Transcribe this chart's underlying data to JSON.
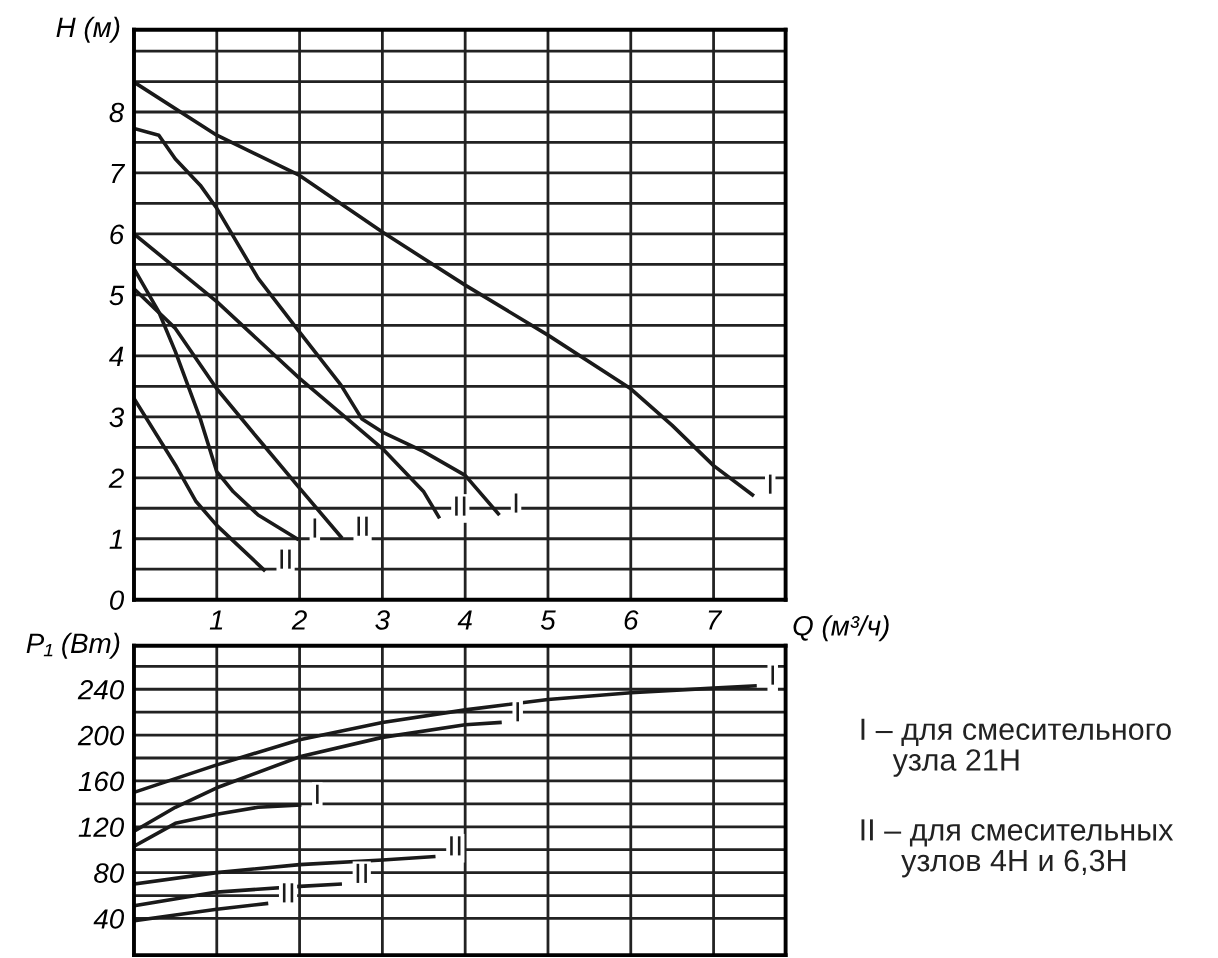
{
  "chart_data": [
    {
      "type": "line",
      "ylabel": "H (м)",
      "xlabel": "Q (м³/ч)",
      "xlim": [
        0,
        7.87
      ],
      "ylim": [
        0,
        9.35
      ],
      "xticks": [
        {
          "value": 0,
          "label": null
        },
        1,
        2,
        3,
        4,
        5,
        6,
        7
      ],
      "yticks": [
        0,
        {
          "value": 0.5,
          "label": null
        },
        1,
        {
          "value": 1.5,
          "label": null
        },
        2,
        {
          "value": 2.5,
          "label": null
        },
        3,
        {
          "value": 3.5,
          "label": null
        },
        4,
        {
          "value": 4.5,
          "label": null
        },
        5,
        {
          "value": 5.5,
          "label": null
        },
        6,
        {
          "value": 6.5,
          "label": null
        },
        7,
        {
          "value": 7.5,
          "label": null
        },
        8,
        {
          "value": 8.5,
          "label": null
        },
        {
          "value": 9,
          "label": null
        }
      ],
      "grid": true,
      "marker": "none",
      "line_style": "solid",
      "series": [
        {
          "name": "I",
          "color": "#1a1a1a",
          "x": [
            0,
            1,
            2,
            3,
            4,
            5,
            6,
            6.5,
            7,
            7.47
          ],
          "values": [
            8.49,
            7.62,
            6.96,
            6.03,
            5.16,
            4.34,
            3.46,
            2.86,
            2.2,
            1.72
          ]
        },
        {
          "name": "I",
          "color": "#1a1a1a",
          "x": [
            0,
            0.3,
            0.5,
            0.8,
            1,
            1.5,
            2,
            2.5,
            2.75,
            3,
            3.5,
            4,
            4.4
          ],
          "values": [
            7.73,
            7.62,
            7.23,
            6.8,
            6.42,
            5.27,
            4.39,
            3.52,
            2.97,
            2.75,
            2.43,
            2.04,
            1.41
          ]
        },
        {
          "name": "II",
          "color": "#1a1a1a",
          "x": [
            0,
            1,
            2,
            3,
            3.5,
            3.68
          ],
          "values": [
            6.0,
            4.89,
            3.63,
            2.48,
            1.77,
            1.36
          ]
        },
        {
          "name": "II",
          "color": "#1a1a1a",
          "x": [
            0,
            0.5,
            1,
            1.5,
            2,
            2.5
          ],
          "values": [
            5.1,
            4.45,
            3.46,
            2.64,
            1.83,
            1.03
          ]
        },
        {
          "name": "I",
          "color": "#1a1a1a",
          "x": [
            0,
            0.3,
            0.5,
            0.8,
            1,
            1.2,
            1.5,
            1.97
          ],
          "values": [
            5.43,
            4.72,
            4.07,
            2.97,
            2.1,
            1.77,
            1.39,
            1.0
          ]
        },
        {
          "name": "II",
          "color": "#1a1a1a",
          "x": [
            0,
            0.5,
            0.75,
            1,
            1.25,
            1.57
          ],
          "values": [
            3.3,
            2.21,
            1.61,
            1.22,
            0.9,
            0.49
          ]
        }
      ]
    },
    {
      "type": "line",
      "ylabel": "P₁ (Вт)",
      "xlim": [
        0,
        7.87
      ],
      "ylim": [
        8,
        278
      ],
      "tick_labels": "y",
      "xticks": [
        {
          "value": 1,
          "label": null
        },
        {
          "value": 2,
          "label": null
        },
        {
          "value": 3,
          "label": null
        },
        {
          "value": 4,
          "label": null
        },
        {
          "value": 5,
          "label": null
        },
        {
          "value": 6,
          "label": null
        },
        {
          "value": 7,
          "label": null
        }
      ],
      "yticks": [
        40,
        {
          "value": 60,
          "label": null
        },
        80,
        {
          "value": 100,
          "label": null
        },
        120,
        {
          "value": 140,
          "label": null
        },
        160,
        {
          "value": 180,
          "label": null
        },
        200,
        {
          "value": 220,
          "label": null
        },
        240,
        {
          "value": 260,
          "label": null
        }
      ],
      "grid": true,
      "marker": "none",
      "line_style": "solid",
      "annotations": [
        "I – для смесительного\n    узла 21H",
        "II – для смесительных\n     узлов 4H и 6,3H"
      ],
      "series": [
        {
          "name": "I",
          "color": "#1a1a1a",
          "x": [
            0,
            1,
            2,
            3,
            4,
            5,
            6,
            7,
            7.5
          ],
          "values": [
            150,
            174,
            196,
            211,
            222,
            231,
            237,
            241,
            243
          ]
        },
        {
          "name": "I",
          "color": "#1a1a1a",
          "x": [
            0,
            0.5,
            1,
            2,
            3,
            4,
            4.42
          ],
          "values": [
            116,
            137,
            154,
            181,
            198,
            209,
            211
          ]
        },
        {
          "name": "I",
          "color": "#1a1a1a",
          "x": [
            0,
            0.5,
            1,
            1.5,
            2.0
          ],
          "values": [
            103,
            123,
            131,
            137,
            139
          ]
        },
        {
          "name": "II",
          "color": "#1a1a1a",
          "x": [
            0,
            1,
            2,
            3,
            3.62
          ],
          "values": [
            70,
            80,
            87,
            91,
            94
          ]
        },
        {
          "name": "II",
          "color": "#1a1a1a",
          "x": [
            0,
            1,
            2,
            2.49
          ],
          "values": [
            51,
            63,
            68,
            70
          ]
        },
        {
          "name": "II",
          "color": "#1a1a1a",
          "x": [
            0,
            0.5,
            1,
            1.6
          ],
          "values": [
            38,
            43,
            48,
            53
          ]
        }
      ]
    }
  ]
}
